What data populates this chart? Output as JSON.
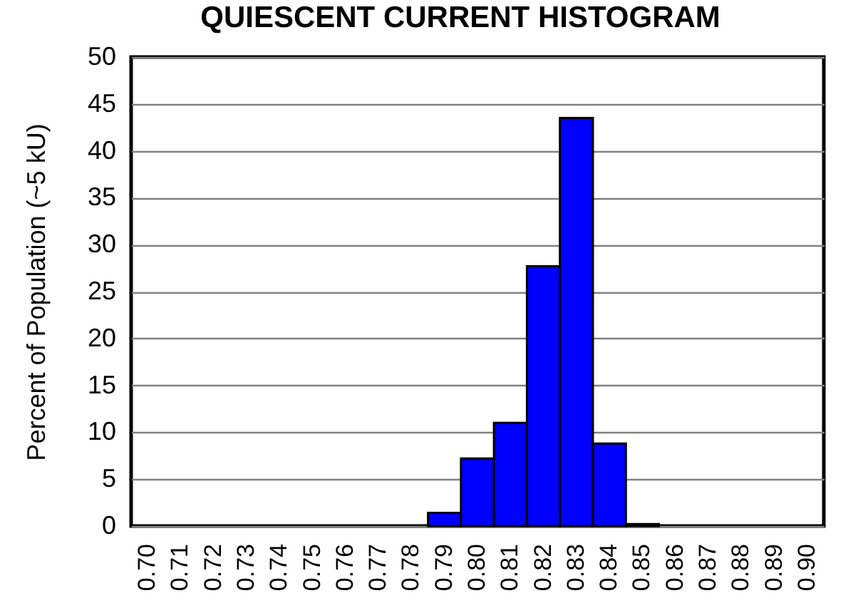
{
  "chart_data": {
    "type": "bar",
    "title": "QUIESCENT CURRENT HISTOGRAM",
    "ylabel": "Percent of Population (~5 kU)",
    "categories": [
      "0.70",
      "0.71",
      "0.72",
      "0.73",
      "0.74",
      "0.75",
      "0.76",
      "0.77",
      "0.78",
      "0.79",
      "0.80",
      "0.81",
      "0.82",
      "0.83",
      "0.84",
      "0.85",
      "0.86",
      "0.87",
      "0.88",
      "0.89",
      "0.90"
    ],
    "values": [
      0,
      0,
      0,
      0,
      0,
      0,
      0,
      0,
      0,
      1.4,
      7.2,
      11.0,
      27.7,
      43.5,
      8.8,
      0.2,
      0,
      0,
      0,
      0,
      0
    ],
    "color": "#0000ff",
    "ylim": [
      0,
      50
    ],
    "yticks": [
      0,
      5,
      10,
      15,
      20,
      25,
      30,
      35,
      40,
      45,
      50
    ],
    "grid": "y"
  }
}
